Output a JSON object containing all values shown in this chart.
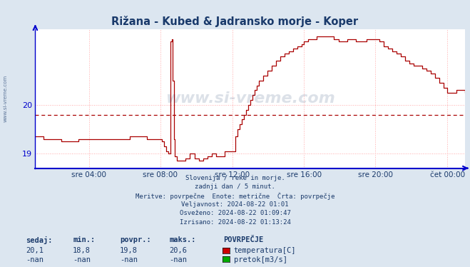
{
  "title": "Rižana - Kubed & Jadransko morje - Koper",
  "title_color": "#1a3a6b",
  "bg_color": "#dce6f0",
  "plot_bg_color": "#ffffff",
  "line_color": "#aa0000",
  "axis_color": "#0000cc",
  "grid_color": "#ffaaaa",
  "avg_line_color": "#aa0000",
  "avg_value": 19.8,
  "ylim": [
    18.7,
    21.55
  ],
  "yticks": [
    19,
    20
  ],
  "xlabel_color": "#1a3a6b",
  "xtick_labels": [
    "sre 04:00",
    "sre 08:00",
    "sre 12:00",
    "sre 16:00",
    "sre 20:00",
    "čet 00:00"
  ],
  "xtick_positions": [
    0.125,
    0.291,
    0.458,
    0.625,
    0.791,
    0.958
  ],
  "watermark": "www.si-vreme.com",
  "watermark_color": "#1a3a6b",
  "subtitle_lines": [
    "Slovenija / reke in morje.",
    "zadnji dan / 5 minut.",
    "Meritve: povrpečne  Enote: metrične  Črta: povrpečje",
    "Veljavnost: 2024-08-22 01:01",
    "Osveženo: 2024-08-22 01:09:47",
    "Izrisano: 2024-08-22 01:13:24"
  ],
  "legend_label1": "temperatura[C]",
  "legend_label2": "pretok[m3/s]",
  "legend_color1": "#cc0000",
  "legend_color2": "#00aa00",
  "table_headers": [
    "sedaj:",
    "min.:",
    "povpr.:",
    "maks.:"
  ],
  "table_row1": [
    "20,1",
    "18,8",
    "19,8",
    "20,6"
  ],
  "table_row2": [
    "-nan",
    "-nan",
    "-nan",
    "-nan"
  ],
  "table_label": "POVRPEČJE",
  "table_header_color": "#1a3a6b",
  "table_value_color": "#1a3a6b"
}
